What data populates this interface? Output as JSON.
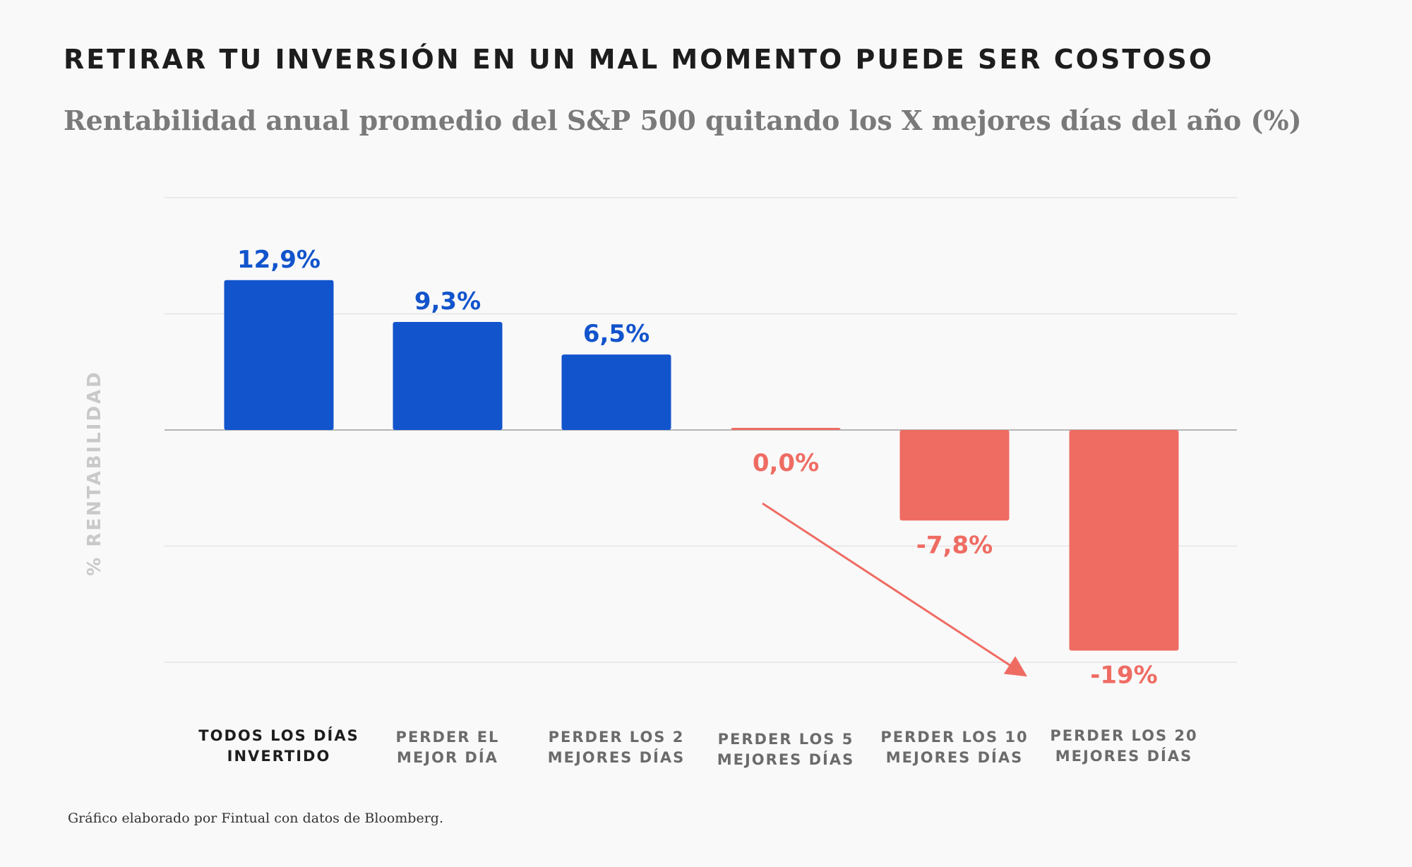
{
  "title": "RETIRAR TU INVERSIÓN EN UN MAL MOMENTO PUEDE SER COSTOSO",
  "subtitle": "Rentabilidad anual promedio del S&P 500 quitando los X mejores días del año (%)",
  "footnote": "Gráfico elaborado por Fintual con datos de Bloomberg.",
  "colors": {
    "positive": "#1254cc",
    "negative": "#ef6c63",
    "grid": "#e4e4e4",
    "axis": "#b5b5b5"
  },
  "chart_data": {
    "type": "bar",
    "categories": [
      [
        "TODOS LOS DÍAS",
        "INVERTIDO"
      ],
      [
        "PERDER EL",
        "MEJOR DÍA"
      ],
      [
        "PERDER LOS 2",
        "MEJORES DÍAS"
      ],
      [
        "PERDER LOS 5",
        "MEJORES DÍAS"
      ],
      [
        "PERDER LOS 10",
        "MEJORES DÍAS"
      ],
      [
        "PERDER LOS 20",
        "MEJORES DÍAS"
      ]
    ],
    "values": [
      12.9,
      9.3,
      6.5,
      0.0,
      -7.8,
      -19
    ],
    "data_labels": [
      "12,9%",
      "9,3%",
      "6,5%",
      "0,0%",
      "-7,8%",
      "-19%"
    ],
    "ylabel": "% RENTABILIDAD",
    "ylim": [
      -20,
      20
    ],
    "gridlines": [
      20,
      10,
      0,
      -10,
      -20
    ],
    "grid": true,
    "highlight_category": 0,
    "annotation": "arrow-down-right"
  }
}
